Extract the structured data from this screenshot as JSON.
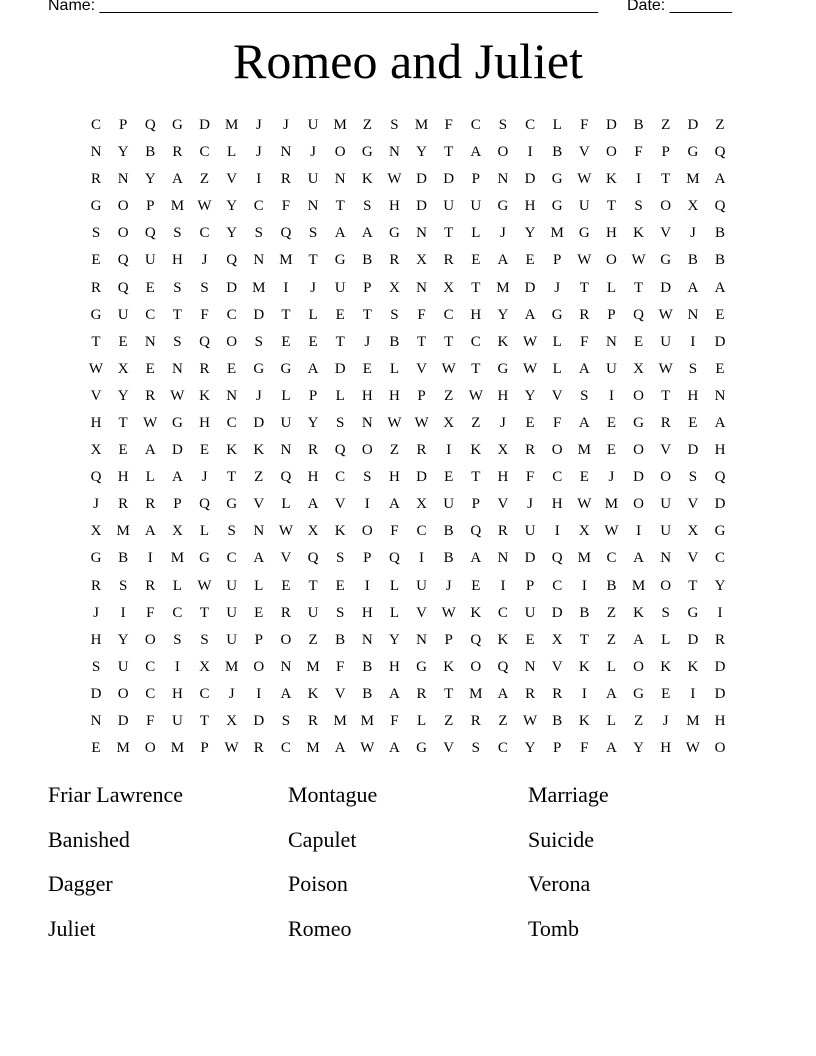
{
  "header": {
    "name_label": "Name: ________________________________________________________",
    "date_label": "Date: _______"
  },
  "title": "Romeo and Juliet",
  "grid": [
    "CPQGDMJJUMZSMFCSCLFDBZDZ",
    "NYBRCLJNJOGNYTAOIBVOFPGQ",
    "RNYAZVIRUNKWDDPNDGWKITMA",
    "GOPMWYCFNTSHDUUGHGUTSOXQ",
    "SOQSCYSQSAAGNTLJYMGHKVJB",
    "EQUHJQNMTGBRXREAEPWOWGBB",
    "RQESSDMIJUPXNXTMDJTLTDAA",
    "GUCTFCDTLETSFCHYAGRPQWNE",
    "TENSQOSEETJBTTCKWLFNEUID",
    "WXENREGGADELVWTGWLAUXWSE",
    "VYRWKNJLPLHHPZWHYVSIOTHN",
    "HTWGHCDUYSNWWXZJEFAEGREA",
    "XEADEKKNRQOZRIKXROMEOVDH",
    "QHLAJTZQHCSHDETHFCEJDOSQ",
    "JRRPQGVLAVIAXUPVJHWMOUVD",
    "XMAXLSNWXKOFCBQRUIXWIUXG",
    "GBIMGCAVQSPQIBANDQMCANVC",
    "RSRLWULETEILUJEIPCIBMOTY",
    "JIFCTUERUSHLVWKCUDBZKSGI",
    "HYOSSUPOZBNYNPQKEXTZALDR",
    "SUCIXMONMFBHGKOQNVKLOKKD",
    "DOCHCJIAKVBARTMARRIAGEID",
    "NDFUTXDSRMMFLZRZWBKLZJMH",
    "EMOMPWRCMAWAGVSCYPFAYHWO"
  ],
  "words": [
    "Friar Lawrence",
    "Montague",
    "Marriage",
    "Banished",
    "Capulet",
    "Suicide",
    "Dagger",
    "Poison",
    "Verona",
    "Juliet",
    "Romeo",
    "Tomb"
  ]
}
